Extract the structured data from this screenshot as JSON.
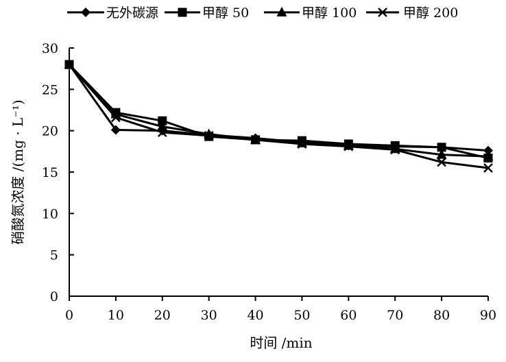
{
  "chart_data": {
    "type": "line",
    "title": "",
    "xlabel": "时间 /min",
    "ylabel": "硝酸氮浓度 /(mg · L⁻¹)",
    "xlim": [
      0,
      90
    ],
    "ylim": [
      0,
      30
    ],
    "x": [
      0,
      10,
      20,
      30,
      40,
      50,
      60,
      70,
      80,
      90
    ],
    "x_ticks": [
      0,
      10,
      20,
      30,
      40,
      50,
      60,
      70,
      80,
      90
    ],
    "y_ticks": [
      0,
      5,
      10,
      15,
      20,
      25,
      30
    ],
    "legend_position": "top",
    "series": [
      {
        "name": "无外碳源",
        "marker": "diamond",
        "values": [
          28.0,
          20.1,
          20.0,
          19.5,
          19.1,
          18.6,
          18.2,
          18.1,
          18.0,
          17.6
        ]
      },
      {
        "name": "甲醇 50",
        "marker": "square",
        "values": [
          28.0,
          22.2,
          21.2,
          19.3,
          18.9,
          18.8,
          18.4,
          18.2,
          18.0,
          16.7
        ]
      },
      {
        "name": "甲醇 100",
        "marker": "triangle",
        "values": [
          28.0,
          22.0,
          20.5,
          19.6,
          18.9,
          18.5,
          18.2,
          17.8,
          17.1,
          16.9
        ]
      },
      {
        "name": "甲醇 200",
        "marker": "x",
        "values": [
          28.0,
          21.6,
          19.8,
          19.4,
          18.9,
          18.4,
          18.1,
          17.7,
          16.2,
          15.5
        ]
      }
    ]
  }
}
